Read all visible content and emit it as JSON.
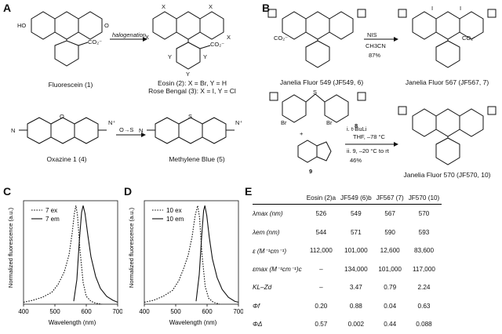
{
  "panel_labels": {
    "A": "A",
    "B": "B",
    "C": "C",
    "D": "D",
    "E": "E"
  },
  "scheme_A": {
    "fluorescein": "Fluorescein (1)",
    "arrow_label": "halogenation",
    "eosin": "Eosin (2): X = Br, Y = H",
    "rose_bengal": "Rose Bengal (3): X = I, Y = Cl",
    "oxazine": "Oxazine 1 (4)",
    "o_to_s": "O→S",
    "methylene_blue": "Methylene Blue (5)",
    "atom_X": "X",
    "atom_Y": "Y",
    "atom_HO": "HO",
    "atom_O": "O",
    "atom_N": "N",
    "atom_S": "S",
    "co2": "CO₂⁻",
    "n_plus": "N⁺"
  },
  "scheme_B": {
    "jf549": "Janelia Fluor 549 (JF549, 6)",
    "reagent1": "NIS",
    "reagent2": "CH3CN",
    "yield1": "87%",
    "jf567": "Janelia Fluor 567 (JF567, 7)",
    "cmpd8": "8",
    "cmpd9": "9",
    "plus": "+",
    "step_i": "i. t-BuLi",
    "step_i_cond": "THF, –78 °C",
    "step_ii": "ii. 9, –20 °C to rt",
    "yield2": "46%",
    "jf570": "Janelia Fluor 570 (JF570, 10)",
    "atom_Br": "Br",
    "atom_I": "I"
  },
  "chart_data": [
    {
      "type": "line",
      "panel": "C",
      "xlabel": "Wavelength (nm)",
      "ylabel": "Normalized fluorescence (a.u.)",
      "xlim": [
        400,
        700
      ],
      "ylim": [
        0,
        1.05
      ],
      "xticks": [
        "400",
        "500",
        "600",
        "700"
      ],
      "series": [
        {
          "name": "7 ex",
          "style": "dotted",
          "x": [
            400,
            430,
            460,
            490,
            510,
            530,
            545,
            555,
            562,
            567,
            572,
            580,
            590,
            600,
            615,
            630,
            650
          ],
          "y": [
            0.02,
            0.04,
            0.07,
            0.12,
            0.2,
            0.33,
            0.5,
            0.72,
            0.92,
            1.0,
            0.9,
            0.55,
            0.22,
            0.08,
            0.03,
            0.01,
            0.0
          ]
        },
        {
          "name": "7 em",
          "style": "solid",
          "x": [
            560,
            570,
            578,
            585,
            590,
            596,
            605,
            615,
            630,
            645,
            665,
            685,
            700
          ],
          "y": [
            0.03,
            0.25,
            0.65,
            0.93,
            1.0,
            0.92,
            0.7,
            0.48,
            0.28,
            0.16,
            0.08,
            0.04,
            0.02
          ]
        }
      ]
    },
    {
      "type": "line",
      "panel": "D",
      "xlabel": "Wavelength (nm)",
      "ylabel": "Normalized fluorescence (a.u.)",
      "xlim": [
        400,
        700
      ],
      "ylim": [
        0,
        1.05
      ],
      "xticks": [
        "400",
        "500",
        "600",
        "700"
      ],
      "series": [
        {
          "name": "10 ex",
          "style": "dotted",
          "x": [
            400,
            430,
            460,
            490,
            510,
            525,
            540,
            552,
            562,
            570,
            576,
            584,
            594,
            605,
            620,
            640
          ],
          "y": [
            0.02,
            0.04,
            0.08,
            0.14,
            0.24,
            0.36,
            0.5,
            0.68,
            0.9,
            1.0,
            0.88,
            0.5,
            0.18,
            0.06,
            0.02,
            0.0
          ]
        },
        {
          "name": "10 em",
          "style": "solid",
          "x": [
            565,
            575,
            583,
            589,
            593,
            599,
            607,
            617,
            632,
            648,
            668,
            688,
            700
          ],
          "y": [
            0.03,
            0.3,
            0.7,
            0.95,
            1.0,
            0.9,
            0.68,
            0.46,
            0.27,
            0.15,
            0.07,
            0.03,
            0.02
          ]
        }
      ]
    },
    {
      "type": "table",
      "panel": "E",
      "columns": [
        "",
        "Eosin (2)a",
        "JF549 (6)b",
        "JF567 (7)",
        "JF570 (10)"
      ],
      "rows": [
        [
          "λmax (nm)",
          "526",
          "549",
          "567",
          "570"
        ],
        [
          "λem (nm)",
          "544",
          "571",
          "590",
          "593"
        ],
        [
          "ε (M⁻¹cm⁻¹)",
          "112,000",
          "101,000",
          "12,600",
          "83,600"
        ],
        [
          "εmax (M⁻¹cm⁻¹)c",
          "–",
          "134,000",
          "101,000",
          "117,000"
        ],
        [
          "KL–Zd",
          "–",
          "3.47",
          "0.79",
          "2.24"
        ],
        [
          "Φf",
          "0.20",
          "0.88",
          "0.04",
          "0.63"
        ],
        [
          "ΦΔ",
          "0.57",
          "0.002",
          "0.44",
          "0.088"
        ]
      ]
    }
  ]
}
